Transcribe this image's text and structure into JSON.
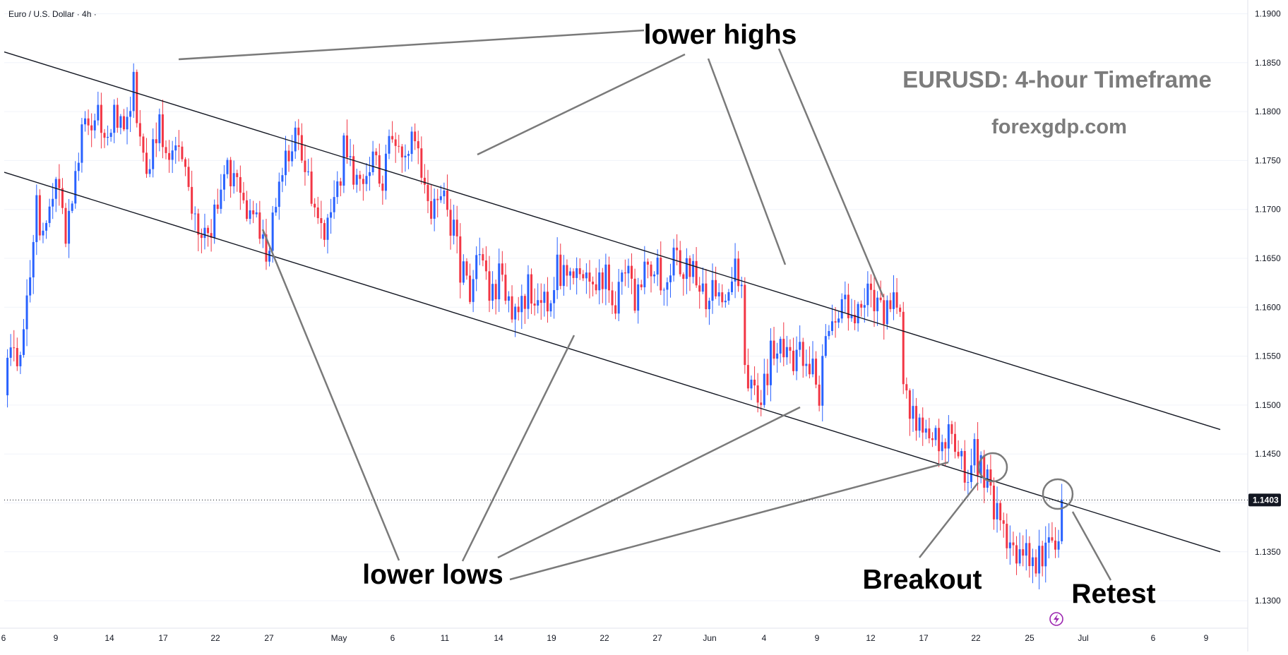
{
  "chart_data": {
    "type": "candlestick",
    "symbol_label": "Euro / U.S. Dollar · 4h ·",
    "title": "EURUSD: 4-hour Timeframe",
    "subtitle": "forexgdp.com",
    "ylim": [
      1.127,
      1.192
    ],
    "y_ticks": [
      "1.1900",
      "1.1850",
      "1.1800",
      "1.1750",
      "1.1700",
      "1.1650",
      "1.1600",
      "1.1550",
      "1.1500",
      "1.1450",
      "1.1400",
      "1.1350",
      "1.1300"
    ],
    "y_tick_values": [
      1.19,
      1.185,
      1.18,
      1.175,
      1.17,
      1.165,
      1.16,
      1.155,
      1.15,
      1.145,
      1.14,
      1.135,
      1.13
    ],
    "x_ticks": [
      "6",
      "9",
      "14",
      "17",
      "22",
      "27",
      "May",
      "6",
      "11",
      "14",
      "19",
      "22",
      "27",
      "Jun",
      "4",
      "9",
      "12",
      "17",
      "22",
      "25",
      "Jul",
      "6",
      "9"
    ],
    "current_price": "1.1403",
    "current_price_value": 1.1403,
    "price_path": [
      [
        0,
        1.151
      ],
      [
        2,
        1.156
      ],
      [
        4,
        1.1535
      ],
      [
        7,
        1.16
      ],
      [
        10,
        1.17
      ],
      [
        13,
        1.167
      ],
      [
        16,
        1.174
      ],
      [
        19,
        1.168
      ],
      [
        22,
        1.174
      ],
      [
        26,
        1.18
      ],
      [
        29,
        1.179
      ],
      [
        32,
        1.178
      ],
      [
        35,
        1.18
      ],
      [
        38,
        1.1785
      ],
      [
        40,
        1.184
      ],
      [
        42,
        1.176
      ],
      [
        45,
        1.174
      ],
      [
        48,
        1.1785
      ],
      [
        51,
        1.176
      ],
      [
        54,
        1.1755
      ],
      [
        57,
        1.172
      ],
      [
        60,
        1.169
      ],
      [
        63,
        1.168
      ],
      [
        66,
        1.17
      ],
      [
        69,
        1.174
      ],
      [
        72,
        1.172
      ],
      [
        75,
        1.17
      ],
      [
        78,
        1.169
      ],
      [
        81,
        1.166
      ],
      [
        84,
        1.17
      ],
      [
        87,
        1.175
      ],
      [
        90,
        1.177
      ],
      [
        93,
        1.174
      ],
      [
        96,
        1.17
      ],
      [
        99,
        1.168
      ],
      [
        102,
        1.17
      ],
      [
        105,
        1.176
      ],
      [
        108,
        1.174
      ],
      [
        111,
        1.174
      ],
      [
        114,
        1.176
      ],
      [
        117,
        1.1725
      ],
      [
        120,
        1.178
      ],
      [
        123,
        1.176
      ],
      [
        126,
        1.178
      ],
      [
        129,
        1.174
      ],
      [
        132,
        1.17
      ],
      [
        135,
        1.171
      ],
      [
        138,
        1.169
      ],
      [
        141,
        1.164
      ],
      [
        144,
        1.162
      ],
      [
        147,
        1.165
      ],
      [
        150,
        1.161
      ],
      [
        153,
        1.163
      ],
      [
        156,
        1.16
      ],
      [
        159,
        1.159
      ],
      [
        162,
        1.162
      ],
      [
        165,
        1.1595
      ],
      [
        168,
        1.161
      ],
      [
        171,
        1.164
      ],
      [
        174,
        1.163
      ],
      [
        177,
        1.1625
      ],
      [
        180,
        1.164
      ],
      [
        183,
        1.162
      ],
      [
        186,
        1.163
      ],
      [
        189,
        1.161
      ],
      [
        192,
        1.164
      ],
      [
        195,
        1.16
      ],
      [
        198,
        1.164
      ],
      [
        201,
        1.165
      ],
      [
        204,
        1.162
      ],
      [
        207,
        1.166
      ],
      [
        210,
        1.163
      ],
      [
        213,
        1.165
      ],
      [
        216,
        1.161
      ],
      [
        219,
        1.162
      ],
      [
        222,
        1.16
      ],
      [
        225,
        1.164
      ],
      [
        228,
        1.1625
      ],
      [
        229,
        1.153
      ],
      [
        231,
        1.152
      ],
      [
        234,
        1.151
      ],
      [
        237,
        1.155
      ],
      [
        240,
        1.156
      ],
      [
        243,
        1.154
      ],
      [
        246,
        1.155
      ],
      [
        249,
        1.1545
      ],
      [
        252,
        1.151
      ],
      [
        254,
        1.158
      ],
      [
        257,
        1.159
      ],
      [
        260,
        1.161
      ],
      [
        263,
        1.159
      ],
      [
        266,
        1.161
      ],
      [
        269,
        1.1605
      ],
      [
        272,
        1.159
      ],
      [
        275,
        1.161
      ],
      [
        277,
        1.16
      ],
      [
        278,
        1.152
      ],
      [
        280,
        1.149
      ],
      [
        283,
        1.148
      ],
      [
        286,
        1.147
      ],
      [
        289,
        1.146
      ],
      [
        292,
        1.147
      ],
      [
        295,
        1.146
      ],
      [
        297,
        1.142
      ],
      [
        300,
        1.145
      ],
      [
        303,
        1.143
      ],
      [
        306,
        1.14
      ],
      [
        309,
        1.138
      ],
      [
        312,
        1.135
      ],
      [
        314,
        1.134
      ],
      [
        317,
        1.135
      ],
      [
        320,
        1.134
      ],
      [
        323,
        1.136
      ],
      [
        326,
        1.137
      ],
      [
        327,
        1.1403
      ]
    ],
    "trendlines": [
      {
        "name": "upper-channel",
        "from": [
          0.0,
          1.1861
        ],
        "to": [
          376.0,
          1.1475
        ]
      },
      {
        "name": "lower-channel",
        "from": [
          0.0,
          1.1738
        ],
        "to": [
          376.0,
          1.135
        ]
      }
    ],
    "annotations": [
      {
        "text": "lower highs"
      },
      {
        "text": "lower lows"
      },
      {
        "text": "Breakout"
      },
      {
        "text": "Retest"
      }
    ]
  }
}
